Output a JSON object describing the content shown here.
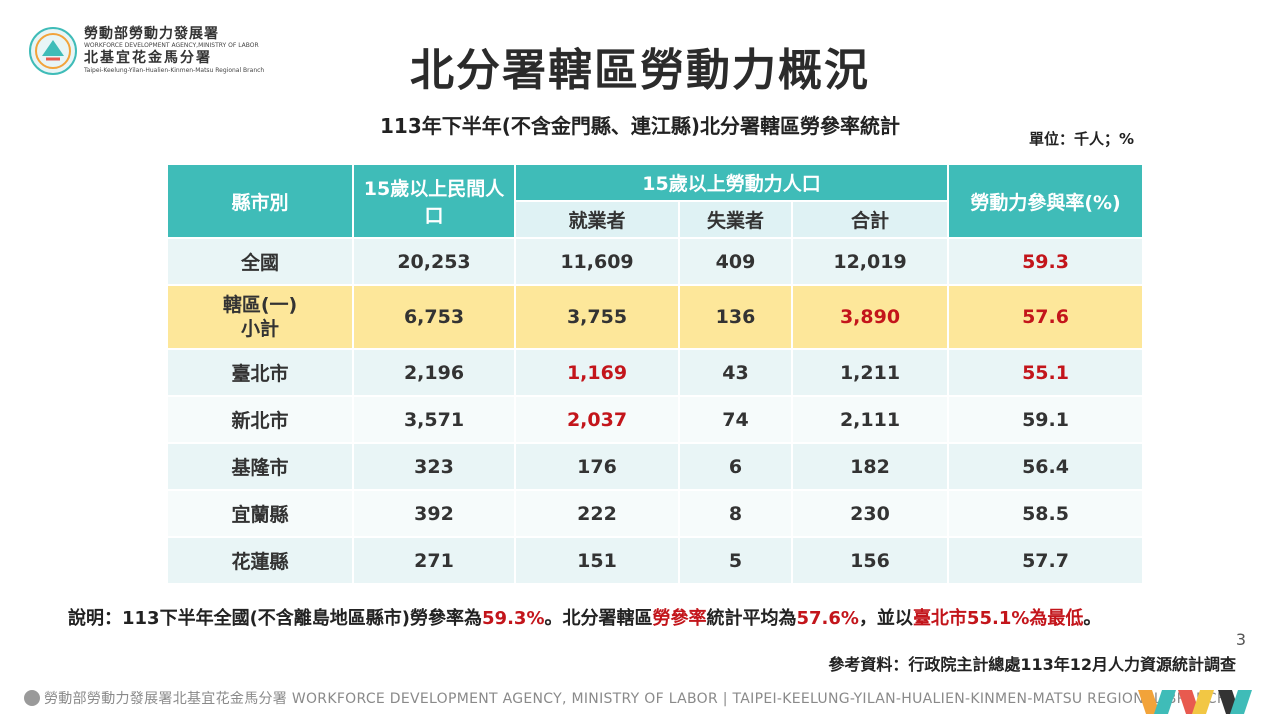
{
  "logo": {
    "line1": "勞動部勞動力發展署",
    "line2": "WORKFORCE DEVELOPMENT AGENCY,MINISTRY OF LABOR",
    "line3": "北基宜花金馬分署",
    "line4": "Taipei-Keelung-Yilan-Hualien-Kinmen-Matsu Regional Branch"
  },
  "title": "北分署轄區勞動力概況",
  "subtitle": "113年下半年(不含金門縣、連江縣)北分署轄區勞參率統計",
  "unit": "單位：千人；%",
  "table": {
    "headers": {
      "county": "縣市別",
      "civilian": "15歲以上民間人口",
      "labor_force": "15歲以上勞動力人口",
      "employed": "就業者",
      "unemployed": "失業者",
      "total": "合計",
      "rate": "勞動力參與率(%)"
    },
    "rows": [
      {
        "county": "全國",
        "civilian": "20,253",
        "employed": "11,609",
        "unemployed": "409",
        "total": "12,019",
        "rate": "59.3"
      },
      {
        "county": "轄區(一)\n小計",
        "civilian": "6,753",
        "employed": "3,755",
        "unemployed": "136",
        "total": "3,890",
        "rate": "57.6"
      },
      {
        "county": "臺北市",
        "civilian": "2,196",
        "employed": "1,169",
        "unemployed": "43",
        "total": "1,211",
        "rate": "55.1"
      },
      {
        "county": "新北市",
        "civilian": "3,571",
        "employed": "2,037",
        "unemployed": "74",
        "total": "2,111",
        "rate": "59.1"
      },
      {
        "county": "基隆市",
        "civilian": "323",
        "employed": "176",
        "unemployed": "6",
        "total": "182",
        "rate": "56.4"
      },
      {
        "county": "宜蘭縣",
        "civilian": "392",
        "employed": "222",
        "unemployed": "8",
        "total": "230",
        "rate": "58.5"
      },
      {
        "county": "花蓮縣",
        "civilian": "271",
        "employed": "151",
        "unemployed": "5",
        "total": "156",
        "rate": "57.7"
      }
    ]
  },
  "note": {
    "p1": "說明：113下半年全國(不含離島地區縣市)勞參率為",
    "p2": "59.3%",
    "p3": "。北分署轄區",
    "p4": "勞參率",
    "p5": "統計平均為",
    "p6": "57.6%",
    "p7": "，並以",
    "p8": "臺北市55.1%為最低",
    "p9": "。"
  },
  "page_number": "3",
  "source": "參考資料：行政院主計總處113年12月人力資源統計調查",
  "footer": "勞動部勞動力發展署北基宜花金馬分署 WORKFORCE DEVELOPMENT AGENCY, MINISTRY OF LABOR  |  TAIPEI-KEELUNG-YILAN-HUALIEN-KINMEN-MATSU REGIONAL BRANCH",
  "colors": {
    "accent": "#3fbcb8",
    "highlight": "#fde79a",
    "red": "#c3151b"
  }
}
